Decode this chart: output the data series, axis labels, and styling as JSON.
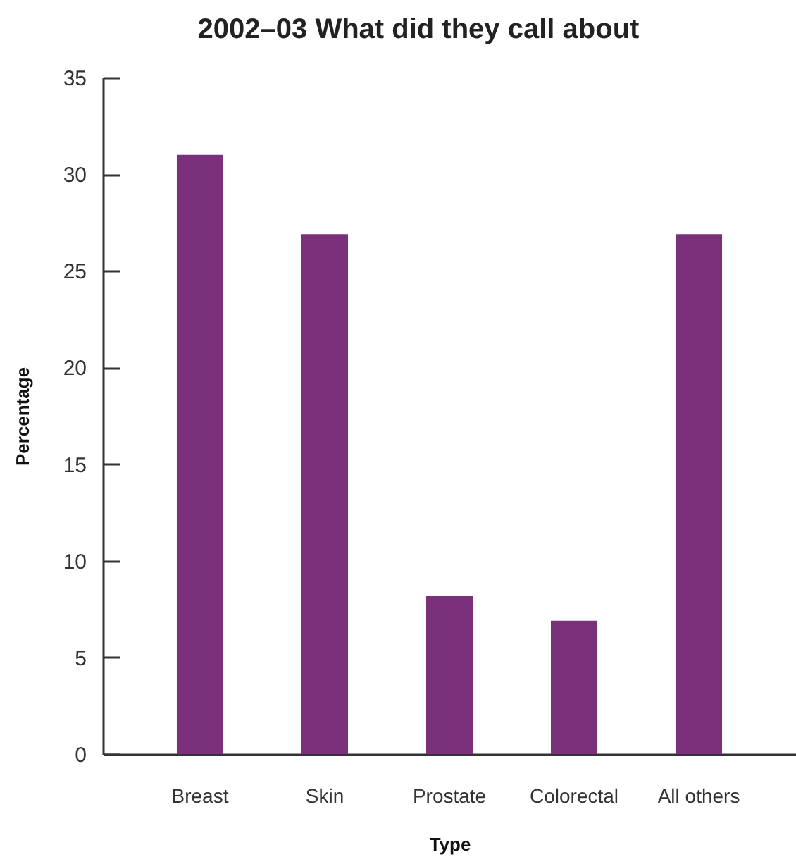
{
  "chart_data": {
    "type": "bar",
    "title": "2002–03 What did they call about",
    "xlabel": "Type",
    "ylabel": "Percentage",
    "categories": [
      "Breast",
      "Skin",
      "Prostate",
      "Colorectal",
      "All others"
    ],
    "values": [
      31,
      26.9,
      8.2,
      6.9,
      26.9
    ],
    "color": "#7b307b",
    "ylim": [
      0,
      35
    ],
    "yticks": [
      0,
      5,
      10,
      15,
      20,
      25,
      30,
      35
    ]
  }
}
